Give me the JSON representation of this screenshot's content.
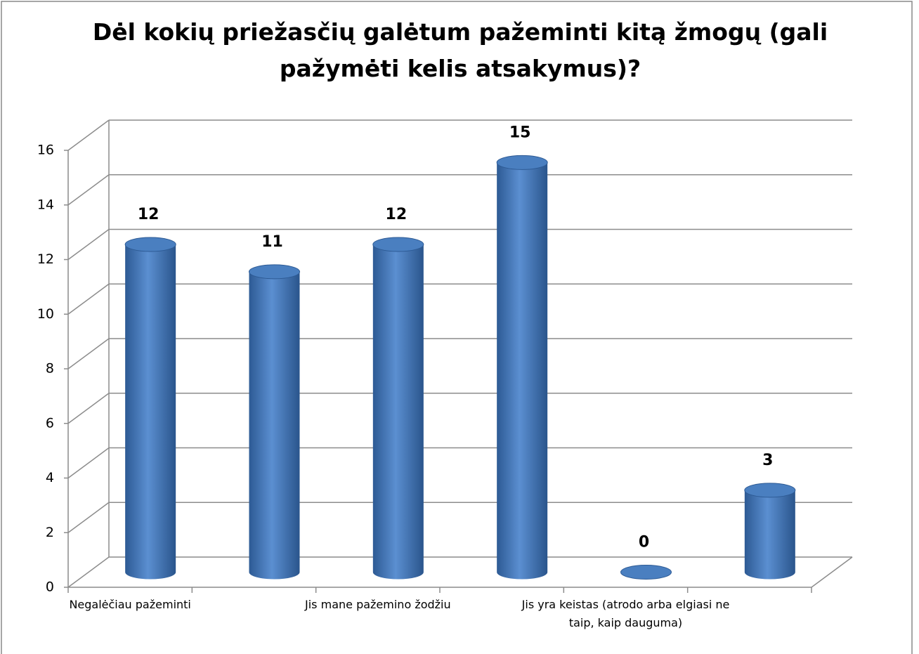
{
  "chart_data": {
    "type": "bar",
    "title": "Dėl kokių priežasčių galėtum pažeminti kitą žmogų (gali pažymėti kelis atsakymus)?",
    "categories": [
      "Negalėčiau pažeminti",
      null,
      "Jis mane pažemino žodžiu",
      null,
      "Jis yra keistas (atrodo arba elgiasi ne taip, kaip dauguma)",
      null
    ],
    "values": [
      12,
      11,
      12,
      15,
      0,
      3
    ],
    "color": "#4f81bd",
    "ylim": [
      0,
      16
    ],
    "yticks": [
      0,
      2,
      4,
      6,
      8,
      10,
      12,
      14,
      16
    ],
    "grid": true
  }
}
